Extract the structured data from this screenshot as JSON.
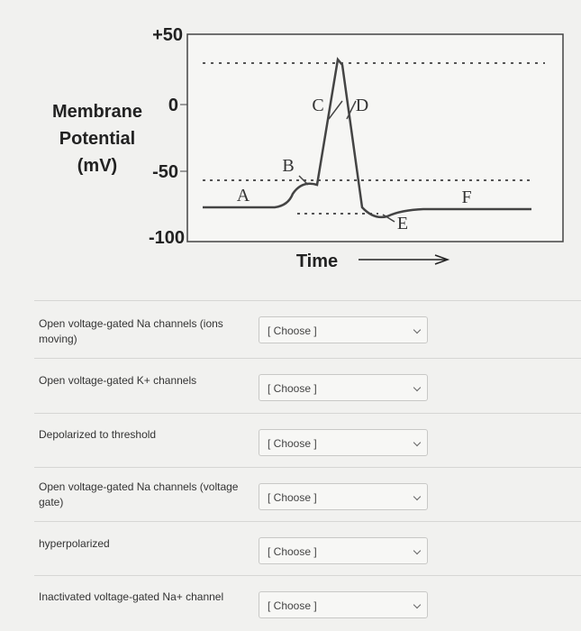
{
  "diagram": {
    "y_axis_label": [
      "Membrane",
      "Potential",
      "(mV)"
    ],
    "y_ticks": [
      "+50",
      "0",
      "-50",
      "-100"
    ],
    "x_axis_label": "Time",
    "point_labels": [
      "A",
      "B",
      "C",
      "D",
      "E",
      "F"
    ]
  },
  "questions": [
    {
      "prompt": "Open voltage-gated Na channels (ions moving)",
      "select": "[ Choose ]"
    },
    {
      "prompt": "Open voltage-gated K+ channels",
      "select": "[ Choose ]"
    },
    {
      "prompt": "Depolarized to threshold",
      "select": "[ Choose ]"
    },
    {
      "prompt": "Open voltage-gated Na channels (voltage gate)",
      "select": "[ Choose ]"
    },
    {
      "prompt": "hyperpolarized",
      "select": "[ Choose ]"
    },
    {
      "prompt": "Inactivated voltage-gated Na+ channel",
      "select": "[ Choose ]"
    }
  ]
}
